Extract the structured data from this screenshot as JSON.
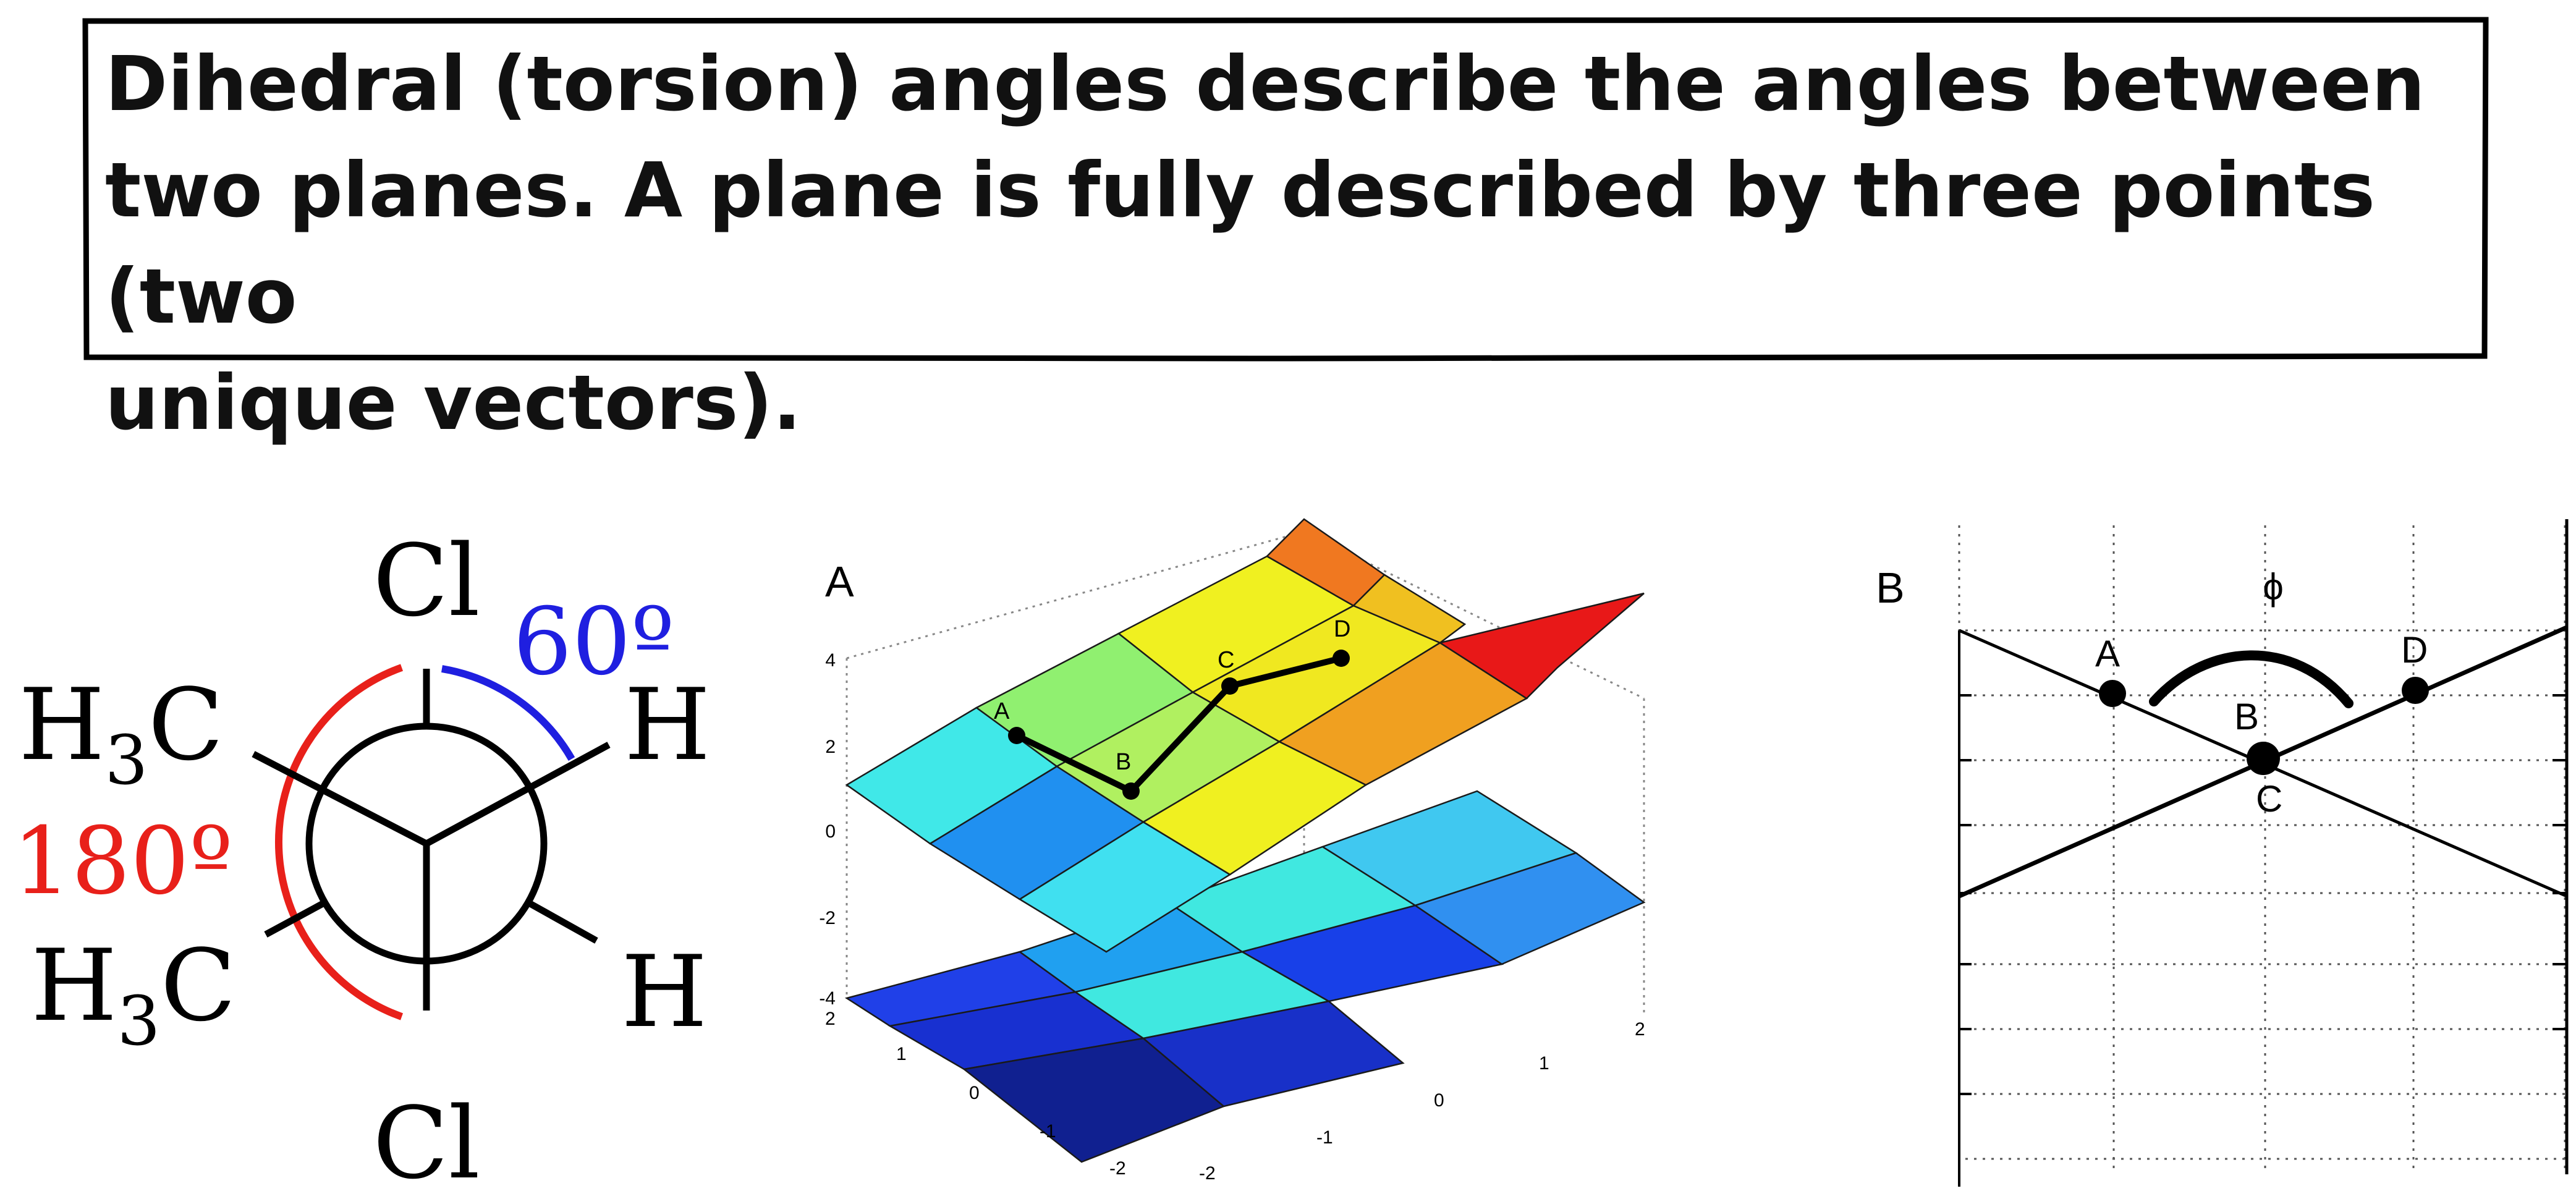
{
  "caption": {
    "line1": "Dihedral (torsion) angles describe the angles between",
    "line2": "two planes. A plane is fully described by three points (two",
    "line3": "unique vectors)."
  },
  "newman": {
    "top_group": "Cl",
    "bottom_group": "Cl",
    "upper_left_main": "H",
    "upper_left_sub": "3",
    "upper_left_end": "C",
    "lower_left_main": "H",
    "lower_left_sub": "3",
    "lower_left_end": "C",
    "upper_right": "H",
    "lower_right": "H",
    "angle_small": "60º",
    "angle_large": "180º",
    "colors": {
      "small_arc": "#1f1fe0",
      "large_arc": "#e8201a",
      "bonds": "#000000"
    }
  },
  "plot_a": {
    "panel_label": "A",
    "z_ticks": [
      "4",
      "2",
      "0",
      "-2",
      "-4"
    ],
    "left_axis_ticks": [
      "2",
      "1",
      "0",
      "-1",
      "-2"
    ],
    "right_axis_ticks": [
      "-2",
      "-1",
      "0",
      "1",
      "2"
    ],
    "points": [
      "A",
      "B",
      "C",
      "D"
    ]
  },
  "plot_b": {
    "panel_label": "B",
    "angle_symbol": "ϕ",
    "points": [
      "A",
      "B",
      "C",
      "D"
    ]
  }
}
